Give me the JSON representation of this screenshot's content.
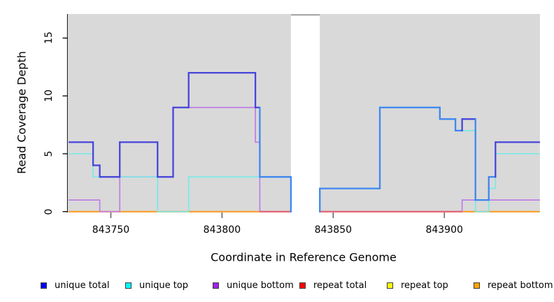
{
  "chart_data": {
    "type": "line",
    "subtype": "step-coverage",
    "title": "",
    "xlabel": "Coordinate in Reference Genome",
    "ylabel": "Read Coverage Depth",
    "xlim": [
      843731,
      843943
    ],
    "ylim": [
      0,
      17
    ],
    "xticks": [
      {
        "value": 843750,
        "label": "843750"
      },
      {
        "value": 843800,
        "label": "843800"
      },
      {
        "value": 843850,
        "label": "843850"
      },
      {
        "value": 843900,
        "label": "843900"
      }
    ],
    "yticks": [
      {
        "value": 0,
        "label": "0"
      },
      {
        "value": 5,
        "label": "5"
      },
      {
        "value": 10,
        "label": "10"
      },
      {
        "value": 15,
        "label": "15"
      }
    ],
    "grid": false,
    "legend_position": "bottom",
    "gap": {
      "start": 843831,
      "end": 843844,
      "note": "white no-data gap in panel"
    },
    "colors": {
      "panel_background": "#d9d9d9",
      "gap_top_line": "#9d9d9d",
      "axis_line": "#2a2a2a",
      "x_tick": "#4d4d4d",
      "y_tick": "#000000",
      "blue_dark": "#4745da",
      "blue_over_cyan": "#3d87f0",
      "cyan_line": "#7ae9e6",
      "purple_line": "#c07de4",
      "red_line": "#e4607d",
      "orange_line": "#ff9e21"
    },
    "series": [
      {
        "name": "unique total",
        "key": "unique-total",
        "legend_color": "#0000ff",
        "line_color": "#4745da",
        "alt_line_color": "#3d87f0",
        "line_width": 2.3,
        "runs": [
          [
            [
              843731,
              843742,
              6,
              "d"
            ],
            [
              843742,
              843745,
              4,
              "d"
            ],
            [
              843745,
              843754,
              3,
              "d"
            ],
            [
              843754,
              843771,
              6,
              "d"
            ],
            [
              843771,
              843778,
              3,
              "d"
            ],
            [
              843778,
              843785,
              9,
              "d"
            ],
            [
              843785,
              843815,
              12,
              "d"
            ],
            [
              843815,
              843817,
              9,
              "d"
            ],
            [
              843817,
              843831,
              3,
              "a"
            ],
            [
              843831,
              843831,
              0,
              "a"
            ]
          ],
          [
            [
              843844,
              843844,
              0,
              "a"
            ],
            [
              843844,
              843871,
              2,
              "a"
            ],
            [
              843871,
              843898,
              9,
              "a"
            ],
            [
              843898,
              843905,
              8,
              "a"
            ],
            [
              843905,
              843908,
              7,
              "a"
            ],
            [
              843908,
              843914,
              8,
              "d"
            ],
            [
              843914,
              843920,
              1,
              "a"
            ],
            [
              843920,
              843923,
              3,
              "a"
            ],
            [
              843923,
              843943,
              6,
              "d"
            ]
          ]
        ]
      },
      {
        "name": "unique top",
        "key": "unique-top",
        "legend_color": "#00ffff",
        "line_color": "#7ae9e6",
        "line_width": 1.7,
        "runs": [
          [
            [
              843731,
              843742,
              5
            ],
            [
              843742,
              843771,
              3
            ],
            [
              843771,
              843785,
              0
            ],
            [
              843785,
              843831,
              3
            ],
            [
              843831,
              843831,
              0
            ]
          ],
          [
            [
              843844,
              843844,
              0
            ],
            [
              843844,
              843871,
              2
            ],
            [
              843871,
              843898,
              9
            ],
            [
              843898,
              843905,
              8
            ],
            [
              843905,
              843914,
              7
            ],
            [
              843914,
              843920,
              0
            ],
            [
              843920,
              843923,
              2
            ],
            [
              843923,
              843943,
              5
            ]
          ]
        ]
      },
      {
        "name": "unique bottom",
        "key": "unique-bottom",
        "legend_color": "#a020f0",
        "line_color": "#c07de4",
        "line_width": 1.7,
        "runs": [
          [
            [
              843731,
              843745,
              1
            ],
            [
              843745,
              843754,
              0
            ],
            [
              843754,
              843778,
              3
            ],
            [
              843778,
              843815,
              9
            ],
            [
              843815,
              843817,
              6
            ],
            [
              843817,
              843831,
              0
            ]
          ],
          [
            [
              843844,
              843908,
              0
            ],
            [
              843908,
              843943,
              1
            ]
          ]
        ]
      },
      {
        "name": "repeat total",
        "key": "repeat-total",
        "legend_color": "#ff0000",
        "line_color": "#e4607d",
        "line_width": 2,
        "runs": [
          [
            [
              843817,
              843831,
              0
            ]
          ],
          [
            [
              843844,
              843908,
              0
            ]
          ]
        ]
      },
      {
        "name": "repeat top",
        "key": "repeat-top",
        "legend_color": "#ffff00",
        "line_color": "#ffe84d",
        "line_width": 1.7,
        "runs": []
      },
      {
        "name": "repeat bottom",
        "key": "repeat-bottom",
        "legend_color": "#ffa500",
        "line_color": "#ff9e21",
        "line_width": 2,
        "runs": [
          [
            [
              843731,
              843831,
              0
            ]
          ],
          [
            [
              843844,
              843943,
              0
            ]
          ]
        ]
      }
    ],
    "draw_order": [
      "repeat-bottom",
      "unique-bottom",
      "repeat-top",
      "repeat-total",
      "unique-top",
      "unique-total"
    ],
    "legend": [
      {
        "label": "unique total",
        "color": "#0000ff"
      },
      {
        "label": "unique top",
        "color": "#00ffff"
      },
      {
        "label": "unique bottom",
        "color": "#a020f0"
      },
      {
        "label": "repeat total",
        "color": "#ff0000"
      },
      {
        "label": "repeat top",
        "color": "#ffff00"
      },
      {
        "label": "repeat bottom",
        "color": "#ffa500"
      }
    ]
  }
}
